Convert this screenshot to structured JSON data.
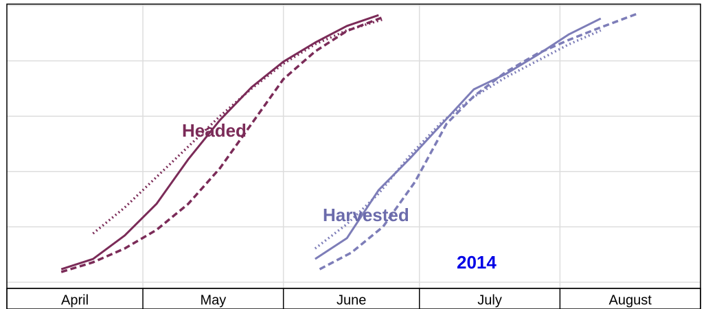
{
  "chart_data": {
    "type": "line",
    "categories": [
      "April",
      "May",
      "June",
      "July",
      "August"
    ],
    "xlim": [
      0,
      153
    ],
    "xticks": [
      0,
      30,
      61,
      91,
      122,
      153
    ],
    "ylim": [
      0,
      100
    ],
    "yticks": [
      0,
      20,
      40,
      60,
      80,
      100
    ],
    "grid": true,
    "series": [
      {
        "color": "#7b2b58",
        "style": "solid",
        "x": [
          12,
          19,
          26,
          33,
          40,
          47,
          54,
          61,
          68,
          75,
          82
        ],
        "values": [
          4.7,
          8.4,
          16.9,
          28.3,
          44.4,
          58.6,
          70.5,
          79.7,
          86.6,
          92.6,
          96.5
        ]
      },
      {
        "color": "#7b2b58",
        "style": "dashed",
        "x": [
          12,
          19,
          26,
          33,
          40,
          47,
          54,
          61,
          68,
          75,
          83
        ],
        "values": [
          3.7,
          7.2,
          12.2,
          18.9,
          28.3,
          41.2,
          57.3,
          73.4,
          83.4,
          90.8,
          95.8
        ]
      },
      {
        "color": "#7b2b58",
        "style": "dotted",
        "x": [
          19,
          26,
          33,
          40,
          47,
          54,
          61,
          68,
          75,
          83
        ],
        "values": [
          17.6,
          27,
          38,
          49,
          60,
          70,
          79,
          86,
          91,
          95
        ]
      },
      {
        "color": "#7d7db8",
        "style": "solid",
        "x": [
          68,
          75,
          82,
          89,
          96,
          103,
          110,
          117,
          124,
          131
        ],
        "values": [
          8.4,
          15.9,
          33.3,
          44.9,
          57.3,
          69.7,
          75.2,
          82.1,
          89.6,
          95.3
        ]
      },
      {
        "color": "#7d7db8",
        "style": "dashed",
        "x": [
          69,
          76,
          83,
          90,
          97,
          103,
          110,
          117,
          124,
          131,
          139
        ],
        "values": [
          4.7,
          10.7,
          20.1,
          36.2,
          57.3,
          67.2,
          75.9,
          82.6,
          87.6,
          92.1,
          97.0
        ]
      },
      {
        "color": "#7d7db8",
        "style": "dotted",
        "x": [
          68,
          75,
          82,
          89,
          96,
          103,
          110,
          117,
          124,
          131
        ],
        "values": [
          12.2,
          21,
          32,
          46,
          58,
          67,
          74,
          80,
          86,
          91
        ]
      }
    ],
    "annotations": [
      {
        "text": "Headed",
        "color": "#7b2b58"
      },
      {
        "text": "Harvested",
        "color": "#6b6bab"
      },
      {
        "text": "2014",
        "color": "#0000e6"
      }
    ]
  }
}
